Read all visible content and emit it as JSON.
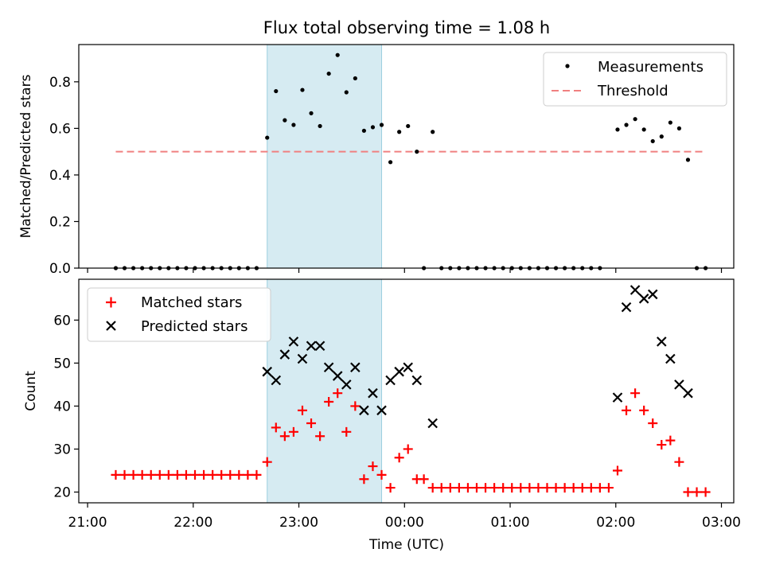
{
  "figure_title": "Flux total observing time = 1.08 h",
  "colors": {
    "measurement": "#000000",
    "threshold": "#f08080",
    "matched": "#ff0000",
    "predicted": "#000000",
    "highlight": "#add8e6"
  },
  "chart_data": [
    {
      "type": "scatter",
      "title": "Flux total observing time = 1.08 h",
      "xlabel": "",
      "ylabel": "Matched/Predicted stars",
      "ylim": [
        0,
        0.96
      ],
      "yticks": [
        "0.0",
        "0.2",
        "0.4",
        "0.6",
        "0.8"
      ],
      "ytick_values": [
        0,
        0.2,
        0.4,
        0.6,
        0.8
      ],
      "xticks": [
        "21:00",
        "22:00",
        "23:00",
        "00:00",
        "01:00",
        "02:00",
        "03:00"
      ],
      "xtick_values": [
        "21:00",
        "22:00",
        "23:00",
        "00:00",
        "01:00",
        "02:00",
        "03:00"
      ],
      "xlim": [
        "20:55",
        "03:07"
      ],
      "legend": {
        "position": "top-right",
        "entries": [
          "Measurements",
          "Threshold"
        ]
      },
      "highlight_span": [
        "22:42",
        "23:47"
      ],
      "threshold": {
        "name": "Threshold",
        "value": 0.5,
        "x_range": [
          "21:16",
          "02:51"
        ]
      },
      "series": [
        {
          "name": "Measurements",
          "marker": "dot",
          "points": [
            [
              "21:16",
              0
            ],
            [
              "21:21",
              0
            ],
            [
              "21:26",
              0
            ],
            [
              "21:31",
              0
            ],
            [
              "21:36",
              0
            ],
            [
              "21:41",
              0
            ],
            [
              "21:46",
              0
            ],
            [
              "21:51",
              0
            ],
            [
              "21:56",
              0
            ],
            [
              "22:01",
              0
            ],
            [
              "22:06",
              0
            ],
            [
              "22:11",
              0
            ],
            [
              "22:16",
              0
            ],
            [
              "22:21",
              0
            ],
            [
              "22:26",
              0
            ],
            [
              "22:31",
              0
            ],
            [
              "22:36",
              0
            ],
            [
              "22:42",
              0.56
            ],
            [
              "22:47",
              0.76
            ],
            [
              "22:52",
              0.635
            ],
            [
              "22:57",
              0.615
            ],
            [
              "23:02",
              0.765
            ],
            [
              "23:07",
              0.665
            ],
            [
              "23:12",
              0.61
            ],
            [
              "23:17",
              0.835
            ],
            [
              "23:22",
              0.915
            ],
            [
              "23:27",
              0.755
            ],
            [
              "23:32",
              0.815
            ],
            [
              "23:37",
              0.59
            ],
            [
              "23:42",
              0.605
            ],
            [
              "23:47",
              0.615
            ],
            [
              "23:52",
              0.455
            ],
            [
              "23:57",
              0.585
            ],
            [
              "00:02",
              0.61
            ],
            [
              "00:07",
              0.5
            ],
            [
              "00:11",
              0
            ],
            [
              "00:16",
              0.585
            ],
            [
              "00:21",
              0
            ],
            [
              "00:26",
              0
            ],
            [
              "00:31",
              0
            ],
            [
              "00:36",
              0
            ],
            [
              "00:41",
              0
            ],
            [
              "00:46",
              0
            ],
            [
              "00:51",
              0
            ],
            [
              "00:56",
              0
            ],
            [
              "01:01",
              0
            ],
            [
              "01:06",
              0
            ],
            [
              "01:11",
              0
            ],
            [
              "01:16",
              0
            ],
            [
              "01:21",
              0
            ],
            [
              "01:26",
              0
            ],
            [
              "01:31",
              0
            ],
            [
              "01:36",
              0
            ],
            [
              "01:41",
              0
            ],
            [
              "01:46",
              0
            ],
            [
              "01:51",
              0
            ],
            [
              "02:01",
              0.595
            ],
            [
              "02:06",
              0.615
            ],
            [
              "02:11",
              0.64
            ],
            [
              "02:16",
              0.595
            ],
            [
              "02:21",
              0.545
            ],
            [
              "02:26",
              0.565
            ],
            [
              "02:31",
              0.625
            ],
            [
              "02:36",
              0.6
            ],
            [
              "02:41",
              0.465
            ],
            [
              "02:46",
              0
            ],
            [
              "02:51",
              0
            ]
          ]
        }
      ]
    },
    {
      "type": "scatter",
      "title": "",
      "xlabel": "Time (UTC)",
      "ylabel": "Count",
      "ylim": [
        17.5,
        69.5
      ],
      "yticks": [
        "20",
        "30",
        "40",
        "50",
        "60"
      ],
      "ytick_values": [
        20,
        30,
        40,
        50,
        60
      ],
      "xticks": [
        "21:00",
        "22:00",
        "23:00",
        "00:00",
        "01:00",
        "02:00",
        "03:00"
      ],
      "xtick_values": [
        "21:00",
        "22:00",
        "23:00",
        "00:00",
        "01:00",
        "02:00",
        "03:00"
      ],
      "xlim": [
        "20:55",
        "03:07"
      ],
      "legend": {
        "position": "top-left",
        "entries": [
          "Matched stars",
          "Predicted stars"
        ]
      },
      "highlight_span": [
        "22:42",
        "23:47"
      ],
      "series": [
        {
          "name": "Matched stars",
          "marker": "plus",
          "points": [
            [
              "21:16",
              24
            ],
            [
              "21:21",
              24
            ],
            [
              "21:26",
              24
            ],
            [
              "21:31",
              24
            ],
            [
              "21:36",
              24
            ],
            [
              "21:41",
              24
            ],
            [
              "21:46",
              24
            ],
            [
              "21:51",
              24
            ],
            [
              "21:56",
              24
            ],
            [
              "22:01",
              24
            ],
            [
              "22:06",
              24
            ],
            [
              "22:11",
              24
            ],
            [
              "22:16",
              24
            ],
            [
              "22:21",
              24
            ],
            [
              "22:26",
              24
            ],
            [
              "22:31",
              24
            ],
            [
              "22:36",
              24
            ],
            [
              "22:42",
              27
            ],
            [
              "22:47",
              35
            ],
            [
              "22:52",
              33
            ],
            [
              "22:57",
              34
            ],
            [
              "23:02",
              39
            ],
            [
              "23:07",
              36
            ],
            [
              "23:12",
              33
            ],
            [
              "23:17",
              41
            ],
            [
              "23:22",
              43
            ],
            [
              "23:27",
              34
            ],
            [
              "23:32",
              40
            ],
            [
              "23:37",
              23
            ],
            [
              "23:42",
              26
            ],
            [
              "23:47",
              24
            ],
            [
              "23:52",
              21
            ],
            [
              "23:57",
              28
            ],
            [
              "00:02",
              30
            ],
            [
              "00:07",
              23
            ],
            [
              "00:11",
              23
            ],
            [
              "00:16",
              21
            ],
            [
              "00:21",
              21
            ],
            [
              "00:26",
              21
            ],
            [
              "00:31",
              21
            ],
            [
              "00:36",
              21
            ],
            [
              "00:41",
              21
            ],
            [
              "00:46",
              21
            ],
            [
              "00:51",
              21
            ],
            [
              "00:56",
              21
            ],
            [
              "01:01",
              21
            ],
            [
              "01:06",
              21
            ],
            [
              "01:11",
              21
            ],
            [
              "01:16",
              21
            ],
            [
              "01:21",
              21
            ],
            [
              "01:26",
              21
            ],
            [
              "01:31",
              21
            ],
            [
              "01:36",
              21
            ],
            [
              "01:41",
              21
            ],
            [
              "01:46",
              21
            ],
            [
              "01:51",
              21
            ],
            [
              "01:56",
              21
            ],
            [
              "02:01",
              25
            ],
            [
              "02:06",
              39
            ],
            [
              "02:11",
              43
            ],
            [
              "02:16",
              39
            ],
            [
              "02:21",
              36
            ],
            [
              "02:26",
              31
            ],
            [
              "02:31",
              32
            ],
            [
              "02:36",
              27
            ],
            [
              "02:41",
              20
            ],
            [
              "02:46",
              20
            ],
            [
              "02:51",
              20
            ]
          ]
        },
        {
          "name": "Predicted stars",
          "marker": "x",
          "points": [
            [
              "22:42",
              48
            ],
            [
              "22:47",
              46
            ],
            [
              "22:52",
              52
            ],
            [
              "22:57",
              55
            ],
            [
              "23:02",
              51
            ],
            [
              "23:07",
              54
            ],
            [
              "23:12",
              54
            ],
            [
              "23:17",
              49
            ],
            [
              "23:22",
              47
            ],
            [
              "23:27",
              45
            ],
            [
              "23:32",
              49
            ],
            [
              "23:37",
              39
            ],
            [
              "23:42",
              43
            ],
            [
              "23:47",
              39
            ],
            [
              "23:52",
              46
            ],
            [
              "23:57",
              48
            ],
            [
              "00:02",
              49
            ],
            [
              "00:07",
              46
            ],
            [
              "00:16",
              36
            ],
            [
              "02:01",
              42
            ],
            [
              "02:06",
              63
            ],
            [
              "02:11",
              67
            ],
            [
              "02:16",
              65
            ],
            [
              "02:21",
              66
            ],
            [
              "02:26",
              55
            ],
            [
              "02:31",
              51
            ],
            [
              "02:36",
              45
            ],
            [
              "02:41",
              43
            ]
          ]
        }
      ]
    }
  ]
}
